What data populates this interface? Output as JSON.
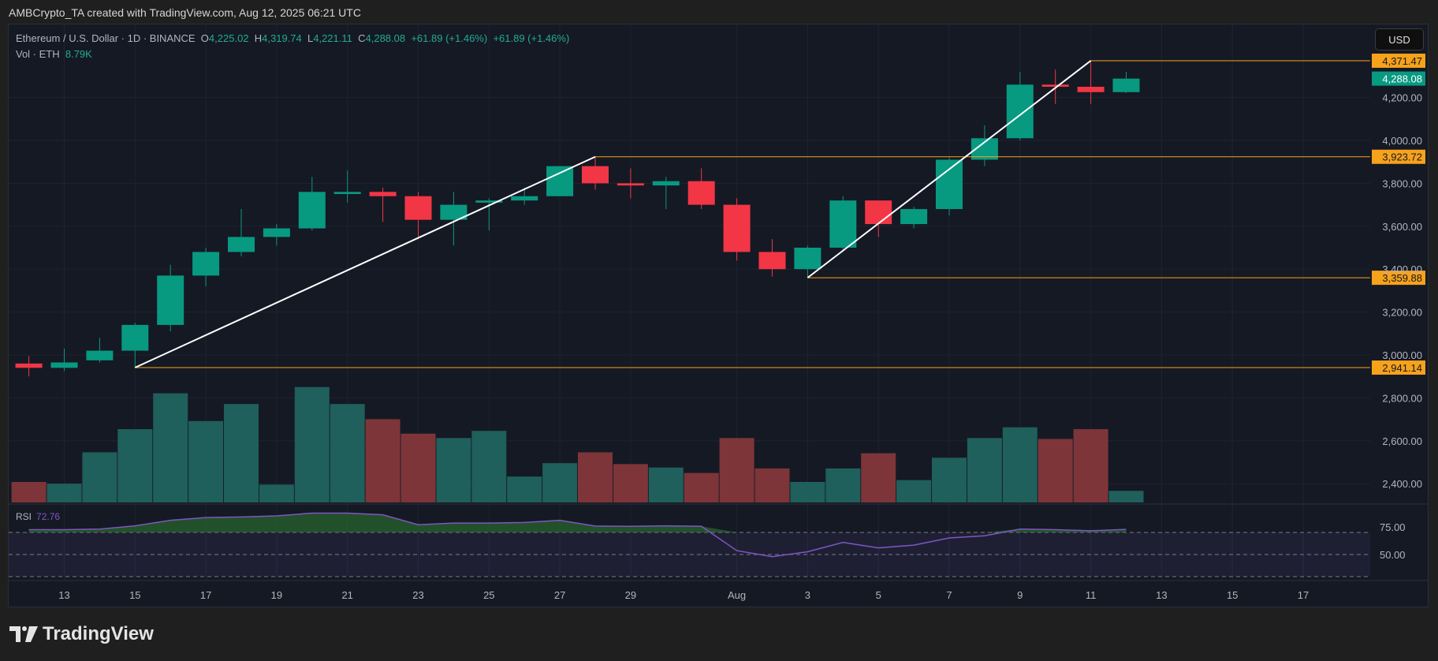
{
  "header": {
    "credit": "AMBCrypto_TA created with TradingView.com, Aug 12, 2025 06:21 UTC"
  },
  "legend": {
    "symbol": "Ethereum / U.S. Dollar · 1D · BINANCE",
    "open_label": "O",
    "open": "4,225.02",
    "high_label": "H",
    "high": "4,319.74",
    "low_label": "L",
    "low": "4,221.11",
    "close_label": "C",
    "close": "4,288.08",
    "change1": "+61.89 (+1.46%)",
    "change2": "+61.89 (+1.46%)",
    "vol_label": "Vol · ETH",
    "vol": "8.79K"
  },
  "currency_button": "USD",
  "rsi": {
    "label": "RSI",
    "value": "72.76"
  },
  "brand": {
    "name": "TradingView"
  },
  "colors": {
    "up": "#089981",
    "down": "#f23645",
    "vol_up": "#1f5f5c",
    "vol_down": "#7d3539",
    "rsi": "#7e57c2",
    "level": "#f7a21b",
    "trend": "#ffffff",
    "background": "#151924"
  },
  "chart_data": {
    "type": "candlestick",
    "dates": [
      "Jul 12",
      "Jul 13",
      "Jul 14",
      "Jul 15",
      "Jul 16",
      "Jul 17",
      "Jul 18",
      "Jul 19",
      "Jul 20",
      "Jul 21",
      "Jul 22",
      "Jul 23",
      "Jul 24",
      "Jul 25",
      "Jul 26",
      "Jul 27",
      "Jul 28",
      "Jul 29",
      "Jul 30",
      "Jul 31",
      "Aug 1",
      "Aug 2",
      "Aug 3",
      "Aug 4",
      "Aug 5",
      "Aug 6",
      "Aug 7",
      "Aug 8",
      "Aug 9",
      "Aug 10",
      "Aug 11",
      "Aug 12"
    ],
    "ohlc": [
      [
        2960,
        2995,
        2900,
        2940
      ],
      [
        2940,
        3030,
        2925,
        2965
      ],
      [
        2975,
        3080,
        2965,
        3020
      ],
      [
        3020,
        3150,
        2941.14,
        3140
      ],
      [
        3140,
        3420,
        3110,
        3370
      ],
      [
        3370,
        3500,
        3320,
        3480
      ],
      [
        3480,
        3680,
        3460,
        3550
      ],
      [
        3550,
        3610,
        3510,
        3590
      ],
      [
        3590,
        3830,
        3580,
        3760
      ],
      [
        3750,
        3860,
        3710,
        3760
      ],
      [
        3760,
        3780,
        3620,
        3740
      ],
      [
        3740,
        3760,
        3540,
        3630
      ],
      [
        3630,
        3760,
        3510,
        3700
      ],
      [
        3710,
        3730,
        3580,
        3720
      ],
      [
        3720,
        3780,
        3700,
        3740
      ],
      [
        3740,
        3880,
        3740,
        3880
      ],
      [
        3880,
        3923.72,
        3770,
        3800
      ],
      [
        3800,
        3870,
        3730,
        3790
      ],
      [
        3790,
        3830,
        3680,
        3810
      ],
      [
        3810,
        3870,
        3680,
        3700
      ],
      [
        3700,
        3730,
        3440,
        3480
      ],
      [
        3480,
        3540,
        3365,
        3400
      ],
      [
        3400,
        3510,
        3359.88,
        3500
      ],
      [
        3500,
        3740,
        3490,
        3720
      ],
      [
        3720,
        3720,
        3550,
        3610
      ],
      [
        3610,
        3690,
        3590,
        3680
      ],
      [
        3680,
        3920,
        3650,
        3910
      ],
      [
        3910,
        4070,
        3880,
        4010
      ],
      [
        4010,
        4320,
        4000,
        4260
      ],
      [
        4260,
        4330,
        4170,
        4250
      ],
      [
        4250,
        4371.47,
        4170,
        4225
      ],
      [
        4225.02,
        4319.74,
        4221.11,
        4288.08
      ]
    ],
    "volume_k": [
      15.5,
      14.2,
      37.9,
      55.4,
      82.5,
      61.5,
      74.4,
      13.5,
      87.2,
      74.4,
      62.9,
      52,
      48.7,
      54.1,
      19.6,
      29.7,
      37.9,
      29,
      26.4,
      22.3,
      48.7,
      25.7,
      15.5,
      25.7,
      37.2,
      16.9,
      33.8,
      48.7,
      56.8,
      48,
      55.4,
      8.79
    ],
    "rsi": [
      72.5,
      72.5,
      73,
      76,
      81,
      83.5,
      84,
      85,
      87.5,
      87.5,
      86,
      77,
      78.5,
      78.5,
      79,
      81,
      75.8,
      75.5,
      76,
      75.5,
      53.5,
      48,
      52.5,
      61,
      56,
      58.5,
      65,
      67,
      73,
      72.5,
      71.5,
      72.76
    ],
    "rsi_levels": [
      70,
      50,
      30
    ],
    "rsi_ticks": [
      "75.00",
      "50.00"
    ],
    "y_ticks": [
      "2,400.00",
      "2,600.00",
      "2,800.00",
      "3,000.00",
      "3,200.00",
      "3,400.00",
      "3,600.00",
      "3,800.00",
      "4,000.00",
      "4,200.00"
    ],
    "y_tick_values": [
      2400,
      2600,
      2800,
      3000,
      3200,
      3400,
      3600,
      3800,
      4000,
      4200
    ],
    "x_ticks": [
      "13",
      "15",
      "17",
      "19",
      "21",
      "23",
      "25",
      "27",
      "29",
      "Aug",
      "3",
      "5",
      "7",
      "9",
      "11",
      "13",
      "15",
      "17"
    ],
    "x_tick_dates": [
      "Jul 13",
      "Jul 15",
      "Jul 17",
      "Jul 19",
      "Jul 21",
      "Jul 23",
      "Jul 25",
      "Jul 27",
      "Jul 29",
      "Aug 1",
      "Aug 3",
      "Aug 5",
      "Aug 7",
      "Aug 9",
      "Aug 11",
      "Aug 13",
      "Aug 15",
      "Aug 17"
    ],
    "price_levels": [
      {
        "value": 4371.47,
        "label": "4,371.47",
        "from": "Aug 11"
      },
      {
        "value": 3923.72,
        "label": "3,923.72",
        "from": "Jul 28"
      },
      {
        "value": 3359.88,
        "label": "3,359.88",
        "from": "Aug 3"
      },
      {
        "value": 2941.14,
        "label": "2,941.14",
        "from": "Jul 15"
      }
    ],
    "trend_lines": [
      {
        "from": [
          "Jul 15",
          2941.14
        ],
        "to": [
          "Jul 28",
          3923.72
        ]
      },
      {
        "from": [
          "Aug 3",
          3359.88
        ],
        "to": [
          "Aug 11",
          4371.47
        ]
      }
    ],
    "last_price": {
      "value": 4288.08,
      "label": "4,288.08"
    }
  }
}
